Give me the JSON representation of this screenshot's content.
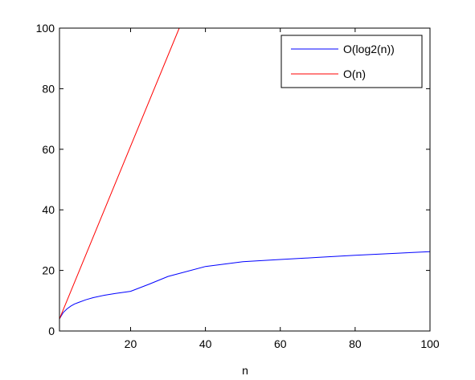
{
  "chart_data": {
    "type": "line",
    "title": "",
    "xlabel": "n",
    "ylabel": "",
    "xlim": [
      1,
      100
    ],
    "ylim": [
      0,
      100
    ],
    "xticks": [
      20,
      40,
      60,
      80,
      100
    ],
    "yticks": [
      0,
      20,
      40,
      60,
      80,
      100
    ],
    "x_tick_labels": [
      "20",
      "40",
      "60",
      "80",
      "100"
    ],
    "y_tick_labels": [
      "0",
      "20",
      "40",
      "60",
      "80",
      "100"
    ],
    "grid": false,
    "legend_position": "top-right",
    "series": [
      {
        "name": "O(log2(n))",
        "color": "#0000ff",
        "x": [
          1,
          2,
          3,
          4,
          5,
          6,
          8,
          10,
          13,
          16,
          20,
          25,
          30,
          40,
          50,
          60,
          70,
          80,
          90,
          100
        ],
        "y": [
          4,
          6.1,
          7.3,
          8.2,
          8.9,
          9.4,
          10.3,
          11,
          11.8,
          12.4,
          13.1,
          15.5,
          18,
          21.3,
          22.9,
          23.6,
          24.3,
          25,
          25.6,
          26.2
        ]
      },
      {
        "name": "O(n)",
        "color": "#ff0000",
        "x": [
          1,
          33
        ],
        "y": [
          4,
          100
        ]
      }
    ]
  }
}
